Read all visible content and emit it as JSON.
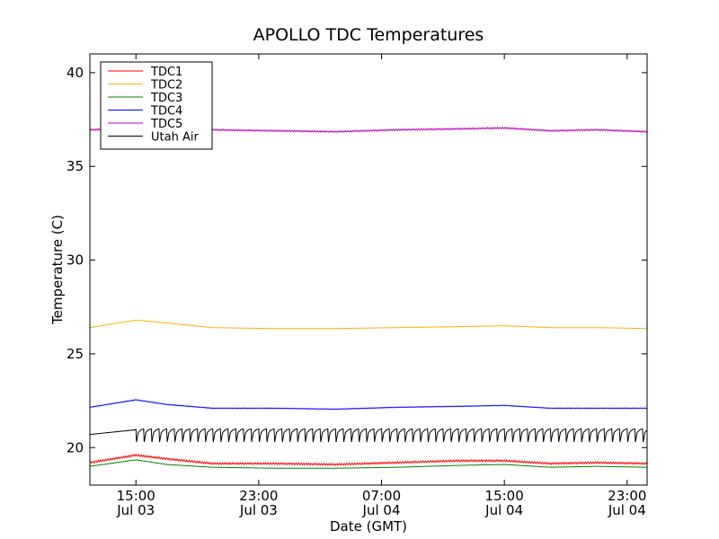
{
  "chart_data": {
    "type": "line",
    "title": "APOLLO TDC Temperatures",
    "xlabel": "Date (GMT)",
    "ylabel": "Temperature (C)",
    "xlim": [
      12,
      48.3
    ],
    "ylim": [
      18,
      41
    ],
    "grid": false,
    "legend_position": "top-left",
    "x_ticks": [
      {
        "x": 15,
        "time": "15:00",
        "date": "Jul 03"
      },
      {
        "x": 23,
        "time": "23:00",
        "date": "Jul 03"
      },
      {
        "x": 31,
        "time": "07:00",
        "date": "Jul 04"
      },
      {
        "x": 39,
        "time": "15:00",
        "date": "Jul 04"
      },
      {
        "x": 47,
        "time": "23:00",
        "date": "Jul 04"
      }
    ],
    "y_ticks": [
      {
        "y": 20,
        "label": "20"
      },
      {
        "y": 25,
        "label": "25"
      },
      {
        "y": 30,
        "label": "30"
      },
      {
        "y": 35,
        "label": "35"
      },
      {
        "y": 40,
        "label": "40"
      }
    ],
    "series": [
      {
        "name": "TDC1",
        "color": "#ff0000",
        "ripple": 0.05,
        "x": [
          12,
          15,
          17,
          20,
          24,
          28,
          32,
          36,
          39,
          42,
          45,
          48.3
        ],
        "y": [
          19.2,
          19.6,
          19.4,
          19.15,
          19.15,
          19.1,
          19.2,
          19.3,
          19.3,
          19.15,
          19.2,
          19.15
        ]
      },
      {
        "name": "TDC2",
        "color": "#ffb000",
        "ripple": 0,
        "x": [
          12,
          15,
          17,
          20,
          24,
          28,
          32,
          36,
          39,
          42,
          45,
          48.3
        ],
        "y": [
          26.4,
          26.8,
          26.65,
          26.4,
          26.35,
          26.35,
          26.4,
          26.45,
          26.5,
          26.4,
          26.4,
          26.35
        ]
      },
      {
        "name": "TDC3",
        "color": "#008000",
        "ripple": 0,
        "x": [
          12,
          15,
          17,
          20,
          24,
          28,
          32,
          36,
          39,
          42,
          45,
          48.3
        ],
        "y": [
          19.0,
          19.35,
          19.1,
          18.95,
          18.9,
          18.9,
          18.95,
          19.05,
          19.1,
          18.95,
          19.0,
          18.95
        ]
      },
      {
        "name": "TDC4",
        "color": "#0000ff",
        "ripple": 0.02,
        "x": [
          12,
          15,
          17,
          20,
          24,
          28,
          32,
          36,
          39,
          42,
          45,
          48.3
        ],
        "y": [
          22.15,
          22.55,
          22.3,
          22.1,
          22.1,
          22.05,
          22.15,
          22.2,
          22.25,
          22.1,
          22.1,
          22.1
        ]
      },
      {
        "name": "TDC5",
        "color": "#bf00bf",
        "ripple": 0.04,
        "x": [
          12,
          15,
          17,
          20,
          24,
          28,
          32,
          36,
          39,
          42,
          45,
          48.3
        ],
        "y": [
          36.95,
          37.05,
          36.95,
          36.95,
          36.9,
          36.85,
          36.95,
          37.0,
          37.05,
          36.9,
          36.95,
          36.85
        ]
      },
      {
        "name": "Utah Air",
        "color": "#000000",
        "sawtooth": true,
        "x": [
          12,
          15
        ],
        "y": [
          20.7,
          20.95
        ],
        "saw_start": 15,
        "saw_period": 0.5,
        "saw_low": 20.3,
        "saw_high": 21.0
      }
    ]
  }
}
